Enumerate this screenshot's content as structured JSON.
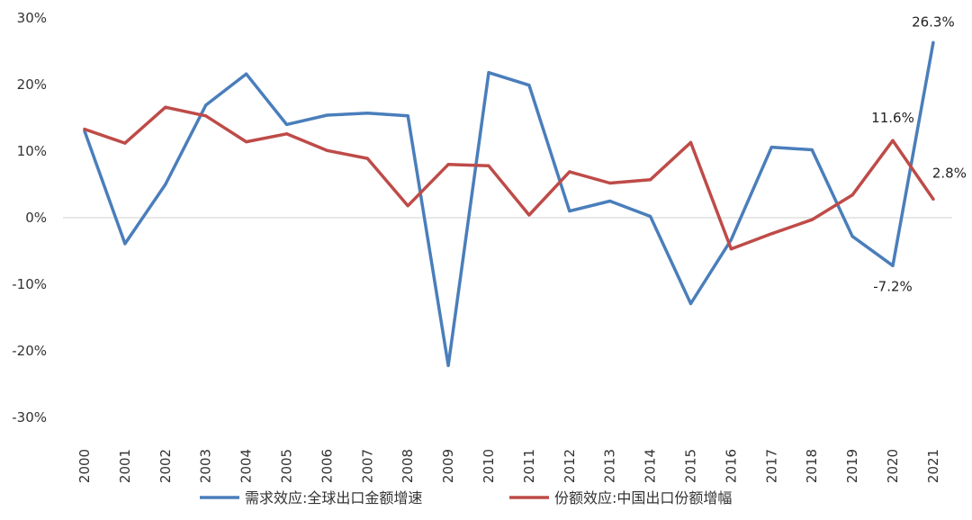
{
  "chart_data": {
    "type": "line",
    "title": "",
    "xlabel": "",
    "ylabel": "",
    "ylim": [
      -30,
      30
    ],
    "y_ticks": [
      30,
      20,
      10,
      0,
      -10,
      -20,
      -30
    ],
    "y_tick_labels": [
      "30%",
      "20%",
      "10%",
      "0%",
      "-10%",
      "-20%",
      "-30%"
    ],
    "grid": false,
    "legend_position": "bottom",
    "x": [
      "2000",
      "2001",
      "2002",
      "2003",
      "2004",
      "2005",
      "2006",
      "2007",
      "2008",
      "2009",
      "2010",
      "2011",
      "2012",
      "2013",
      "2014",
      "2015",
      "2016",
      "2017",
      "2018",
      "2019",
      "2020",
      "2021"
    ],
    "series": [
      {
        "name": "需求效应:全球出口金额增速",
        "color": "#4a7ebb",
        "values": [
          13.0,
          -3.9,
          5.0,
          16.9,
          21.6,
          14.0,
          15.4,
          15.7,
          15.3,
          -22.2,
          21.8,
          19.9,
          1.0,
          2.5,
          0.2,
          -12.9,
          -3.3,
          10.6,
          10.2,
          -2.8,
          -7.2,
          26.3
        ]
      },
      {
        "name": "份额效应:中国出口份额增幅",
        "color": "#be4b48",
        "values": [
          13.3,
          11.2,
          16.6,
          15.3,
          11.4,
          12.6,
          10.1,
          8.9,
          1.8,
          8.0,
          7.8,
          0.4,
          6.9,
          5.2,
          5.7,
          11.3,
          -4.7,
          -2.4,
          -0.3,
          3.4,
          11.6,
          2.8
        ]
      }
    ],
    "annotations": [
      {
        "series": 0,
        "index": 21,
        "text": "26.3%"
      },
      {
        "series": 0,
        "index": 20,
        "text": "-7.2%"
      },
      {
        "series": 1,
        "index": 20,
        "text": "11.6%"
      },
      {
        "series": 1,
        "index": 21,
        "text": "2.8%"
      }
    ]
  }
}
